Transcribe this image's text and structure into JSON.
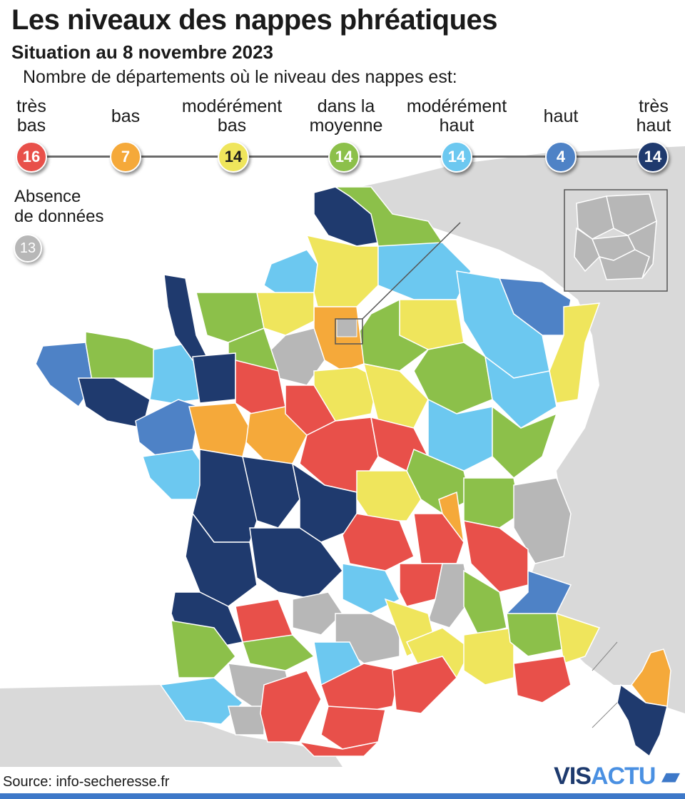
{
  "header": {
    "title": "Les niveaux des nappes phréatiques",
    "subtitle": "Situation au 8 novembre 2023",
    "intro": "Nombre de départements où le niveau des nappes est:"
  },
  "legend": [
    {
      "label": "très\nbas",
      "count": "16",
      "color": "#e8504a"
    },
    {
      "label": "bas",
      "count": "7",
      "color": "#f5a93a"
    },
    {
      "label": "modérément\nbas",
      "count": "14",
      "color": "#efe55c"
    },
    {
      "label": "dans la\nmoyenne",
      "count": "14",
      "color": "#8cc04a"
    },
    {
      "label": "modérément\nhaut",
      "count": "14",
      "color": "#6cc8f0"
    },
    {
      "label": "haut",
      "count": "4",
      "color": "#4e82c6"
    },
    {
      "label": "très\nhaut",
      "count": "14",
      "color": "#1f3a6e"
    }
  ],
  "absence": {
    "label": "Absence\nde données",
    "count": "13",
    "color": "#b7b7b7"
  },
  "source": "Source: info-secheresse.fr",
  "logo": {
    "main": "VISACTU",
    "brand": "VISACTU"
  }
}
